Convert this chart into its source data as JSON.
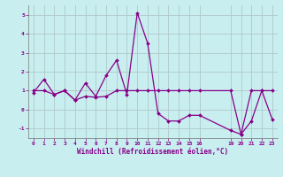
{
  "xlabel": "Windchill (Refroidissement éolien,°C)",
  "background_color": "#c8eef0",
  "grid_color": "#b0c8c8",
  "line_color": "#880088",
  "hours": [
    0,
    1,
    2,
    3,
    4,
    5,
    6,
    7,
    8,
    9,
    10,
    11,
    12,
    13,
    14,
    15,
    16,
    19,
    20,
    21,
    22,
    23
  ],
  "windchill": [
    0.9,
    1.6,
    0.8,
    1.0,
    0.5,
    1.4,
    0.7,
    1.8,
    2.6,
    0.8,
    5.1,
    3.5,
    -0.2,
    -0.6,
    -0.6,
    -0.3,
    -0.3,
    -1.1,
    -1.3,
    -0.6,
    1.0,
    -0.5
  ],
  "temp_hours": [
    0,
    1,
    2,
    3,
    4,
    5,
    6,
    7,
    8,
    9,
    10,
    11,
    12,
    13,
    14,
    15,
    16,
    19,
    20,
    21,
    22,
    23
  ],
  "temp": [
    1.0,
    1.0,
    0.8,
    1.0,
    0.5,
    0.7,
    0.65,
    0.7,
    1.0,
    1.0,
    1.0,
    1.0,
    1.0,
    1.0,
    1.0,
    1.0,
    1.0,
    1.0,
    -1.3,
    1.0,
    1.0,
    1.0
  ],
  "ylim": [
    -1.5,
    5.5
  ],
  "xtick_positions": [
    0,
    1,
    2,
    3,
    4,
    5,
    6,
    7,
    8,
    9,
    10,
    11,
    12,
    13,
    14,
    15,
    16,
    19,
    20,
    21,
    22,
    23
  ],
  "xtick_labels": [
    "0",
    "1",
    "2",
    "3",
    "4",
    "5",
    "6",
    "7",
    "8",
    "9",
    "10",
    "11",
    "12",
    "13",
    "14",
    "15",
    "16",
    "19",
    "20",
    "21",
    "22",
    "23"
  ],
  "yticks": [
    -1,
    0,
    1,
    2,
    3,
    4,
    5
  ]
}
